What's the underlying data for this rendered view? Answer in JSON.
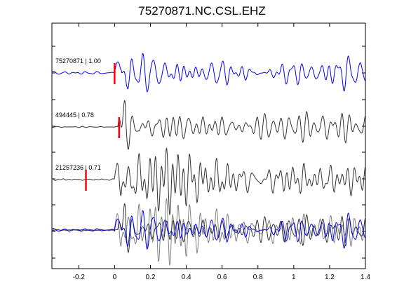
{
  "title": "75270871.NC.CSL.EHZ",
  "chart_data": {
    "type": "line",
    "title": "75270871.NC.CSL.EHZ",
    "xlabel": "",
    "ylabel": "",
    "xlim": [
      -0.35,
      1.4
    ],
    "xticks": [
      "-0.2",
      "0",
      "0.2",
      "0.4",
      "0.6",
      "0.8",
      "1",
      "1.2",
      "1.4"
    ],
    "xtick_values": [
      -0.2,
      0,
      0.2,
      0.4,
      0.6,
      0.8,
      1,
      1.2,
      1.4
    ],
    "grid": false,
    "colors": {
      "primary": "#0000ff",
      "secondary": "#333333",
      "overlay_gray": "#808080",
      "pick": "#ff0000"
    },
    "traces": [
      {
        "label": "75270871 | 1.00",
        "color": "#0000ff",
        "pick_time": 0.0
      },
      {
        "label": "494445 | 0.78",
        "color": "#333333",
        "pick_time": 0.025
      },
      {
        "label": "21257236 | 0.71",
        "color": "#333333",
        "pick_time": -0.16
      }
    ],
    "stack_row": {
      "description_colors": [
        "#0000ff",
        "#333333",
        "#808080"
      ]
    }
  }
}
